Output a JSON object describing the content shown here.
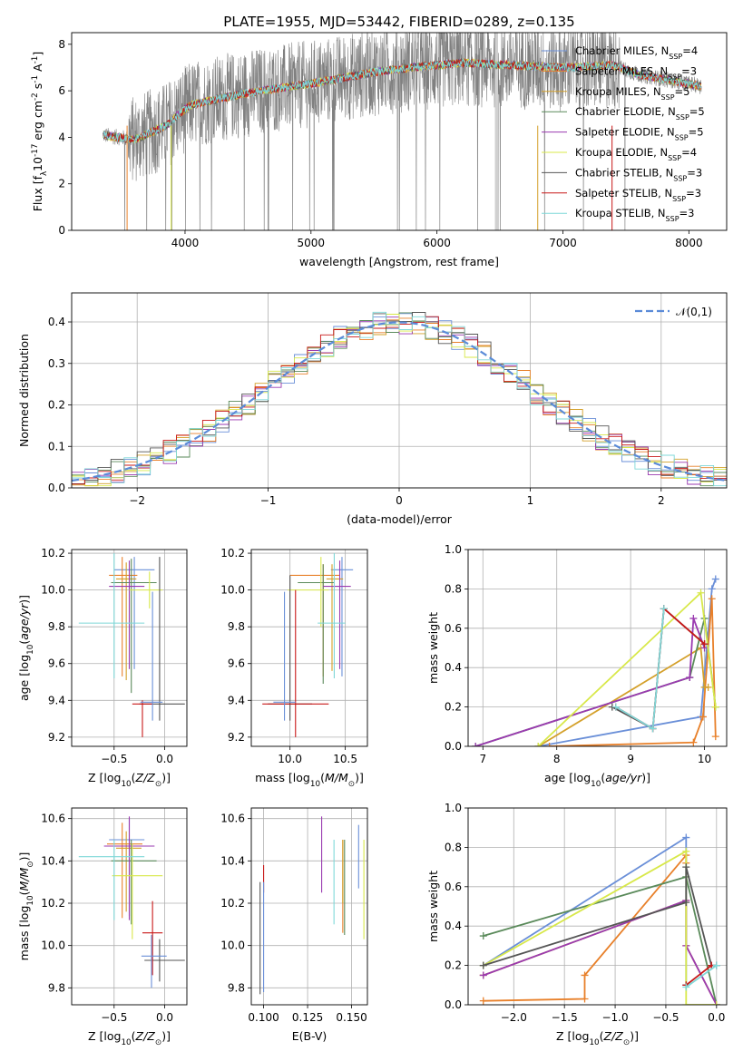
{
  "figure": {
    "title": "PLATE=1955, MJD=53442, FIBERID=0289, z=0.135"
  },
  "models": [
    {
      "label": "Chabrier MILES, N$_{SSP}$=4",
      "color": "#6a8fd8"
    },
    {
      "label": "Salpeter MILES, N$_{SSP}$=3",
      "color": "#e8802a"
    },
    {
      "label": "Kroupa MILES, N$_{SSP}$=5",
      "color": "#d4a02a"
    },
    {
      "label": "Chabrier ELODIE, N$_{SSP}$=5",
      "color": "#5a8a5a"
    },
    {
      "label": "Salpeter ELODIE, N$_{SSP}$=5",
      "color": "#9a3ab0"
    },
    {
      "label": "Kroupa ELODIE, N$_{SSP}$=4",
      "color": "#d8e84a"
    },
    {
      "label": "Chabrier STELIB, N$_{SSP}$=3",
      "color": "#555555"
    },
    {
      "label": "Salpeter STELIB, N$_{SSP}$=3",
      "color": "#c81818"
    },
    {
      "label": "Kroupa STELIB, N$_{SSP}$=3",
      "color": "#7fd8d8"
    }
  ],
  "chart_data": [
    {
      "id": "spectrum",
      "type": "line",
      "xlabel": "wavelength [Angstrom, rest frame]",
      "ylabel": "Flux [f$_\\lambda$10$^{-17}$ erg cm$^{-2}$ s$^{-1}$ A$^{-1}$]",
      "xlim": [
        3100,
        8300
      ],
      "ylim": [
        0,
        8.5
      ],
      "xticks": [
        4000,
        5000,
        6000,
        7000,
        8000
      ],
      "yticks": [
        0,
        2,
        4,
        6,
        8
      ],
      "x_range_data": [
        3350,
        8100
      ],
      "continuum": {
        "x": [
          3350,
          3600,
          3850,
          3950,
          4050,
          4300,
          4600,
          5000,
          5200,
          5500,
          5800,
          6000,
          6200,
          6600,
          7000,
          7400,
          7600,
          7900,
          8100
        ],
        "y": [
          4.1,
          3.9,
          4.5,
          5.0,
          5.4,
          5.7,
          6.0,
          6.3,
          6.5,
          6.8,
          7.0,
          7.1,
          7.2,
          7.1,
          7.0,
          7.1,
          6.7,
          6.4,
          6.2
        ]
      },
      "grid": false,
      "legend": "right"
    },
    {
      "id": "residuals",
      "type": "histogram",
      "xlabel": "(data-model)/error",
      "ylabel": "Normed distribution",
      "xlim": [
        -2.5,
        2.5
      ],
      "ylim": [
        0,
        0.47
      ],
      "xticks": [
        -2,
        -1,
        0,
        1,
        2
      ],
      "yticks": [
        0.0,
        0.1,
        0.2,
        0.3,
        0.4
      ],
      "reference_label": "$\\mathcal{N}(0,1)$",
      "reference_color": "#5b8bd8",
      "grid": true,
      "legend": "top-right"
    },
    {
      "id": "age_vs_Z",
      "type": "scatter",
      "xlabel": "Z [log$_{10}$($Z/Z_\\odot$)]",
      "ylabel": "age  [log$_{10}$($age/yr$)]",
      "xlim": [
        -0.92,
        0.22
      ],
      "ylim": [
        9.15,
        10.22
      ],
      "xticks": [
        -0.5,
        0.0
      ],
      "yticks": [
        9.2,
        9.4,
        9.6,
        9.8,
        10.0,
        10.2
      ],
      "points": [
        {
          "x": -0.3,
          "y": 10.11,
          "xerr": [
            0.2,
            0.2
          ],
          "yerr": [
            0.54,
            0.07
          ]
        },
        {
          "x": -0.42,
          "y": 10.08,
          "xerr": [
            0.13,
            0.15
          ],
          "yerr": [
            0.55,
            0.1
          ]
        },
        {
          "x": -0.38,
          "y": 10.06,
          "xerr": [
            0.1,
            0.1
          ],
          "yerr": [
            0.55,
            0.09
          ]
        },
        {
          "x": -0.33,
          "y": 10.04,
          "xerr": [
            0.2,
            0.25
          ],
          "yerr": [
            0.6,
            0.13
          ]
        },
        {
          "x": -0.35,
          "y": 10.02,
          "xerr": [
            0.2,
            0.15
          ],
          "yerr": [
            0.45,
            0.14
          ]
        },
        {
          "x": -0.15,
          "y": 10.0,
          "xerr": [
            0.2,
            0.13
          ],
          "yerr": [
            0.1,
            0.1
          ]
        },
        {
          "x": -0.05,
          "y": 9.38,
          "xerr": [
            0.2,
            0.25
          ],
          "yerr": [
            0.09,
            0.8
          ]
        },
        {
          "x": -0.22,
          "y": 9.38,
          "xerr": [
            0.1,
            0.1
          ],
          "yerr": [
            0.18,
            0.02
          ]
        },
        {
          "x": -0.5,
          "y": 9.82,
          "xerr": [
            0.35,
            0.3
          ],
          "yerr": [
            0.3,
            0.38
          ]
        },
        {
          "x": -0.12,
          "y": 9.39,
          "xerr": [
            0.12,
            0.1
          ],
          "yerr": [
            0.1,
            0.6
          ]
        }
      ],
      "grid": true
    },
    {
      "id": "age_vs_mass",
      "type": "scatter",
      "xlabel": "mass [log$_{10}$($M/M_\\odot$)]",
      "ylabel": "",
      "xlim": [
        9.65,
        10.7
      ],
      "ylim": [
        9.15,
        10.22
      ],
      "xticks": [
        10.0,
        10.5
      ],
      "yticks": [
        9.2,
        9.4,
        9.6,
        9.8,
        10.0,
        10.2
      ],
      "points": [
        {
          "x": 10.47,
          "y": 10.11,
          "xerr": [
            0.1,
            0.1
          ],
          "yerr": [
            0.58,
            0.07
          ]
        },
        {
          "x": 10.3,
          "y": 10.08,
          "xerr": [
            0.3,
            0.15
          ],
          "yerr": [
            0.55,
            0.06
          ]
        },
        {
          "x": 10.38,
          "y": 10.06,
          "xerr": [
            0.05,
            0.1
          ],
          "yerr": [
            0.5,
            0.08
          ]
        },
        {
          "x": 10.3,
          "y": 10.04,
          "xerr": [
            0.23,
            0.1
          ],
          "yerr": [
            0.55,
            0.1
          ]
        },
        {
          "x": 10.45,
          "y": 10.02,
          "xerr": [
            0.15,
            0.1
          ],
          "yerr": [
            0.45,
            0.14
          ]
        },
        {
          "x": 10.28,
          "y": 10.0,
          "xerr": [
            0.3,
            0.07
          ],
          "yerr": [
            0.2,
            0.18
          ]
        },
        {
          "x": 10.0,
          "y": 9.38,
          "xerr": [
            0.2,
            0.2
          ],
          "yerr": [
            0.09,
            0.7
          ]
        },
        {
          "x": 10.05,
          "y": 9.38,
          "xerr": [
            0.3,
            0.3
          ],
          "yerr": [
            0.18,
            0.62
          ]
        },
        {
          "x": 10.4,
          "y": 9.82,
          "xerr": [
            0.15,
            0.1
          ],
          "yerr": [
            0.3,
            0.38
          ]
        },
        {
          "x": 9.95,
          "y": 9.39,
          "xerr": [
            0.1,
            0.1
          ],
          "yerr": [
            0.1,
            0.6
          ]
        }
      ],
      "grid": true
    },
    {
      "id": "mw_vs_age",
      "type": "line",
      "xlabel": "age  [log$_{10}$($age/yr$)]",
      "ylabel": "mass weight",
      "xlim": [
        6.8,
        10.3
      ],
      "ylim": [
        0,
        1.0
      ],
      "xticks": [
        7,
        8,
        9,
        10
      ],
      "yticks": [
        0.0,
        0.2,
        0.4,
        0.6,
        0.8,
        1.0
      ],
      "series": [
        {
          "x": [
            7.75,
            9.95,
            10.1,
            10.15
          ],
          "y": [
            0.0,
            0.15,
            0.8,
            0.85
          ]
        },
        {
          "x": [
            7.9,
            9.85,
            9.98,
            10.1,
            10.15
          ],
          "y": [
            0.0,
            0.02,
            0.15,
            0.75,
            0.05
          ]
        },
        {
          "x": [
            7.75,
            9.95,
            10.0,
            10.05
          ],
          "y": [
            0.0,
            0.5,
            0.3,
            0.3
          ]
        },
        {
          "x": [
            6.9,
            9.8,
            10.0,
            10.15
          ],
          "y": [
            0.0,
            0.35,
            0.65,
            0.2
          ]
        },
        {
          "x": [
            6.9,
            9.8,
            9.85,
            10.0
          ],
          "y": [
            0.0,
            0.35,
            0.65,
            0.5
          ]
        },
        {
          "x": [
            7.75,
            9.95,
            10.15
          ],
          "y": [
            0.0,
            0.78,
            0.2
          ]
        },
        {
          "x": [
            8.75,
            9.3,
            9.45,
            10.0
          ],
          "y": [
            0.2,
            0.09,
            0.7,
            0.52
          ]
        },
        {
          "x": [
            8.8,
            9.3,
            9.45,
            10.0
          ],
          "y": [
            0.2,
            0.09,
            0.7,
            0.52
          ]
        },
        {
          "x": [
            8.8,
            9.3,
            9.45
          ],
          "y": [
            0.2,
            0.09,
            0.7
          ]
        }
      ],
      "grid": true
    },
    {
      "id": "mass_vs_Z",
      "type": "scatter",
      "xlabel": "Z [log$_{10}$($Z/Z_\\odot$)]",
      "ylabel": "mass [log$_{10}$($M/M_\\odot$)]",
      "xlim": [
        -0.92,
        0.22
      ],
      "ylim": [
        9.72,
        10.65
      ],
      "xticks": [
        -0.5,
        0.0
      ],
      "yticks": [
        9.8,
        10.0,
        10.2,
        10.4,
        10.6
      ],
      "points": [
        {
          "x": -0.35,
          "y": 10.5,
          "xerr": [
            0.2,
            0.15
          ],
          "yerr": [
            0.36,
            0.1
          ]
        },
        {
          "x": -0.42,
          "y": 10.48,
          "xerr": [
            0.15,
            0.2
          ],
          "yerr": [
            0.35,
            0.1
          ]
        },
        {
          "x": -0.38,
          "y": 10.46,
          "xerr": [
            0.1,
            0.15
          ],
          "yerr": [
            0.3,
            0.08
          ]
        },
        {
          "x": -0.33,
          "y": 10.4,
          "xerr": [
            0.2,
            0.25
          ],
          "yerr": [
            0.3,
            0.1
          ]
        },
        {
          "x": -0.35,
          "y": 10.47,
          "xerr": [
            0.25,
            0.25
          ],
          "yerr": [
            0.35,
            0.14
          ]
        },
        {
          "x": -0.32,
          "y": 10.33,
          "xerr": [
            0.2,
            0.3
          ],
          "yerr": [
            0.3,
            0.15
          ]
        },
        {
          "x": -0.05,
          "y": 9.93,
          "xerr": [
            0.15,
            0.25
          ],
          "yerr": [
            0.1,
            0.1
          ]
        },
        {
          "x": -0.12,
          "y": 10.06,
          "xerr": [
            0.1,
            0.1
          ],
          "yerr": [
            0.2,
            0.15
          ]
        },
        {
          "x": -0.5,
          "y": 10.42,
          "xerr": [
            0.35,
            0.3
          ],
          "yerr": [
            0.3,
            0.08
          ]
        },
        {
          "x": -0.13,
          "y": 9.95,
          "xerr": [
            0.1,
            0.15
          ],
          "yerr": [
            0.15,
            0.1
          ]
        }
      ],
      "grid": true
    },
    {
      "id": "mass_vs_ebv",
      "type": "scatter",
      "xlabel": "E(B-V)",
      "ylabel": "",
      "xlim": [
        0.093,
        0.159
      ],
      "ylim": [
        9.72,
        10.65
      ],
      "xticks": [
        0.1,
        0.125,
        0.15
      ],
      "xtick_labels": [
        "0.100",
        "0.125",
        "0.150"
      ],
      "yticks": [
        9.8,
        10.0,
        10.2,
        10.4,
        10.6
      ],
      "points": [
        {
          "x": 0.154,
          "y": 10.42,
          "yerr": [
            0.15,
            0.15
          ]
        },
        {
          "x": 0.145,
          "y": 10.2,
          "yerr": [
            0.14,
            0.3
          ]
        },
        {
          "x": 0.145,
          "y": 10.3,
          "yerr": [
            0.1,
            0.2
          ]
        },
        {
          "x": 0.146,
          "y": 10.25,
          "yerr": [
            0.2,
            0.25
          ]
        },
        {
          "x": 0.133,
          "y": 10.43,
          "yerr": [
            0.18,
            0.18
          ]
        },
        {
          "x": 0.157,
          "y": 10.25,
          "yerr": [
            0.22,
            0.25
          ]
        },
        {
          "x": 0.098,
          "y": 10.05,
          "yerr": [
            0.28,
            0.25
          ]
        },
        {
          "x": 0.1,
          "y": 10.3,
          "yerr": [
            0.05,
            0.08
          ]
        },
        {
          "x": 0.14,
          "y": 10.3,
          "yerr": [
            0.2,
            0.2
          ]
        },
        {
          "x": 0.1,
          "y": 10.05,
          "yerr": [
            0.27,
            0.25
          ]
        }
      ],
      "grid": true
    },
    {
      "id": "mw_vs_Z",
      "type": "line",
      "xlabel": "Z [log$_{10}$($Z/Z_\\odot$)]",
      "ylabel": "mass weight",
      "xlim": [
        -2.45,
        0.1
      ],
      "ylim": [
        0,
        1.0
      ],
      "xticks": [
        -2.0,
        -1.5,
        -1.0,
        -0.5,
        0.0
      ],
      "yticks": [
        0.0,
        0.2,
        0.4,
        0.6,
        0.8,
        1.0
      ],
      "series": [
        {
          "x": [
            -2.3,
            -0.3,
            -0.3
          ],
          "y": [
            0.2,
            0.85,
            0.1
          ]
        },
        {
          "x": [
            -2.3,
            -1.3,
            -1.3,
            -0.3,
            -0.3
          ],
          "y": [
            0.02,
            0.03,
            0.15,
            0.76,
            0.72
          ]
        },
        {
          "x": [
            -2.3,
            -0.3,
            -0.3,
            0.0
          ],
          "y": [
            0.15,
            0.53,
            0.3,
            0.0
          ]
        },
        {
          "x": [
            -2.3,
            -0.3,
            0.0
          ],
          "y": [
            0.35,
            0.65,
            0.0
          ]
        },
        {
          "x": [
            -2.3,
            -0.3,
            -0.3,
            0.0
          ],
          "y": [
            0.15,
            0.53,
            0.3,
            0.0
          ]
        },
        {
          "x": [
            -2.3,
            -0.3,
            -0.3,
            0.0
          ],
          "y": [
            0.2,
            0.78,
            0.0,
            0.0
          ]
        },
        {
          "x": [
            -2.3,
            -0.3,
            -0.3,
            -0.05,
            0.0
          ],
          "y": [
            0.2,
            0.52,
            0.7,
            0.2,
            0.2
          ]
        },
        {
          "x": [
            -0.3,
            -0.05
          ],
          "y": [
            0.1,
            0.2
          ]
        },
        {
          "x": [
            -0.3,
            0.0
          ],
          "y": [
            0.09,
            0.2
          ]
        }
      ],
      "grid": true
    }
  ]
}
